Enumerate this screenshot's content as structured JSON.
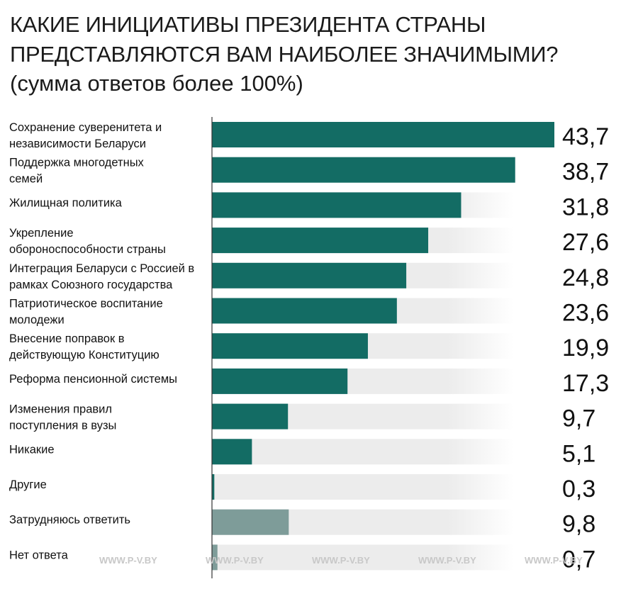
{
  "colors": {
    "bar_main": "#136c64",
    "bar_muted": "#7e9c99",
    "track_light": "#ececec",
    "axis": "#333333"
  },
  "chart_data": {
    "type": "bar",
    "orientation": "horizontal",
    "title_line1": "КАКИЕ ИНИЦИАТИВЫ ПРЕЗИДЕНТА СТРАНЫ",
    "title_line2": "ПРЕДСТАВЛЯЮТСЯ ВАМ НАИБОЛЕЕ ЗНАЧИМЫМИ?",
    "subtitle": "(сумма ответов более 100%)",
    "xlim": [
      0,
      43.7
    ],
    "categories": [
      [
        "Сохранение суверенитета и",
        "независимости Беларуси"
      ],
      [
        "Поддержка многодетных",
        "семей"
      ],
      [
        "Жилищная политика"
      ],
      [
        "Укрепление",
        "обороноспособности страны"
      ],
      [
        "Интеграция Беларуси с Россией в",
        "рамках Союзного государства"
      ],
      [
        "Патриотическое воспитание",
        "молодежи"
      ],
      [
        "Внесение поправок в",
        "действующую Конституцию"
      ],
      [
        "Реформа пенсионной системы"
      ],
      [
        "Изменения правил",
        "поступления в вузы"
      ],
      [
        "Никакие"
      ],
      [
        "Другие"
      ],
      [
        "Затрудняюсь ответить"
      ],
      [
        "Нет ответа"
      ]
    ],
    "values": [
      43.7,
      38.7,
      31.8,
      27.6,
      24.8,
      23.6,
      19.9,
      17.3,
      9.7,
      5.1,
      0.3,
      9.8,
      0.7
    ],
    "value_labels": [
      "43,7",
      "38,7",
      "31,8",
      "27,6",
      "24,8",
      "23,6",
      "19,9",
      "17,3",
      "9,7",
      "5,1",
      "0,3",
      "9,8",
      "0,7"
    ],
    "muted": [
      false,
      false,
      false,
      false,
      false,
      false,
      false,
      false,
      false,
      false,
      false,
      true,
      true
    ]
  },
  "watermark": "WWW.P-V.BY"
}
